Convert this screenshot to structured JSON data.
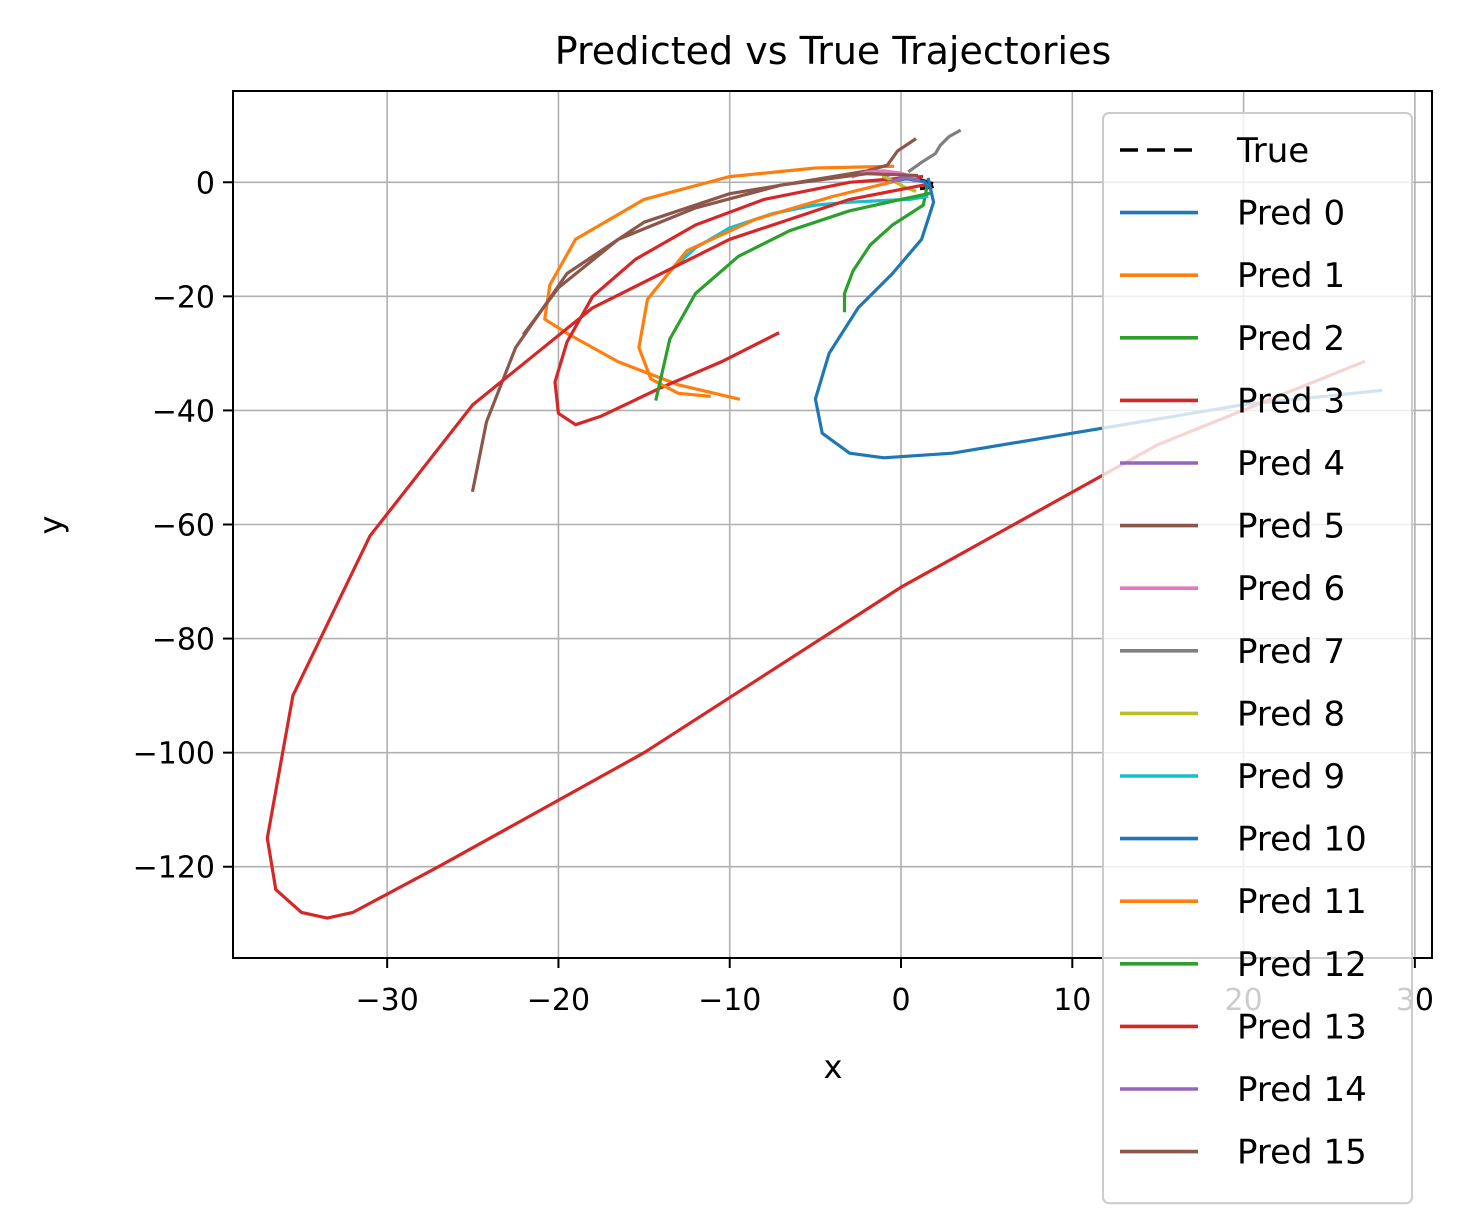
{
  "chart_data": {
    "type": "line",
    "title": "Predicted vs True Trajectories",
    "xlabel": "x",
    "ylabel": "y",
    "xlim": [
      -39,
      31
    ],
    "ylim": [
      -136,
      16
    ],
    "xticks": [
      -30,
      -20,
      -10,
      0,
      10,
      20,
      30
    ],
    "yticks": [
      0,
      -20,
      -40,
      -60,
      -80,
      -100,
      -120
    ],
    "xtick_labels": [
      "−30",
      "−20",
      "−10",
      "0",
      "10",
      "20",
      "30"
    ],
    "ytick_labels": [
      "0",
      "−20",
      "−40",
      "−60",
      "−80",
      "−100",
      "−120"
    ],
    "grid": true,
    "legend_position": "upper-right",
    "series": [
      {
        "name": "True",
        "color": "#000000",
        "dashed": true,
        "x": [
          1.0,
          1.4,
          1.8,
          2.0,
          1.7,
          1.2
        ],
        "y": [
          0.5,
          0.2,
          -0.2,
          -0.6,
          -0.9,
          -1.1
        ]
      },
      {
        "name": "Pred 0",
        "color": "#1f77b4",
        "x": [
          1.6,
          1.9,
          1.2,
          -0.5,
          -2.5,
          -4.2,
          -5.0,
          -4.6,
          -3.0,
          -1.0,
          3.0,
          10.0,
          20.0,
          28.0
        ],
        "y": [
          0.5,
          -3.5,
          -10.0,
          -16.0,
          -22.0,
          -30.0,
          -38.0,
          -44.0,
          -47.5,
          -48.3,
          -47.5,
          -44.0,
          -39.0,
          -36.5
        ]
      },
      {
        "name": "Pred 1",
        "color": "#ff7f0e",
        "x": [
          -0.5,
          -5.0,
          -10.0,
          -15.0,
          -19.0,
          -20.5,
          -20.8,
          -19.5,
          -16.5,
          -13.0,
          -9.5
        ],
        "y": [
          2.8,
          2.5,
          1.0,
          -3.0,
          -10.0,
          -18.0,
          -24.0,
          -26.5,
          -31.5,
          -35.5,
          -38.0
        ]
      },
      {
        "name": "Pred 2",
        "color": "#2ca02c",
        "x": [
          1.5,
          1.3,
          -0.5,
          -1.8,
          -2.8,
          -3.3,
          -3.3
        ],
        "y": [
          -1.0,
          -4.0,
          -7.5,
          -11.0,
          -15.5,
          -19.5,
          -22.5
        ]
      },
      {
        "name": "Pred 3",
        "color": "#d62728",
        "x": [
          1.2,
          -3.0,
          -8.0,
          -12.0,
          -15.5,
          -18.0,
          -19.5,
          -20.2,
          -20.0,
          -19.0,
          -17.5,
          -14.0,
          -10.5,
          -7.2
        ],
        "y": [
          1.0,
          0.0,
          -3.0,
          -7.5,
          -13.5,
          -20.0,
          -28.0,
          -35.0,
          -40.5,
          -42.5,
          -41.0,
          -36.0,
          -31.5,
          -26.5
        ]
      },
      {
        "name": "Pred 4",
        "color": "#9467bd",
        "x": [
          -1.0,
          -0.5,
          0.0,
          0.3
        ],
        "y": [
          1.0,
          1.5,
          1.2,
          0.6
        ]
      },
      {
        "name": "Pred 5",
        "color": "#8c564b",
        "x": [
          0.8,
          -0.2,
          -0.8,
          -2.0,
          -5.0,
          -10.0,
          -15.0,
          -19.5,
          -22.5,
          -24.2,
          -25.0
        ],
        "y": [
          7.5,
          5.5,
          3.0,
          2.0,
          0.5,
          -2.0,
          -7.0,
          -16.0,
          -29.0,
          -42.0,
          -54.0
        ]
      },
      {
        "name": "Pred 6",
        "color": "#e377c2",
        "x": [
          -2.8,
          -2.0,
          -1.0,
          0.0,
          0.8
        ],
        "y": [
          1.0,
          1.8,
          2.0,
          1.6,
          0.8
        ]
      },
      {
        "name": "Pred 7",
        "color": "#7f7f7f",
        "x": [
          0.5,
          1.2,
          2.0,
          2.3,
          2.8,
          3.4
        ],
        "y": [
          2.0,
          3.5,
          5.0,
          6.5,
          8.0,
          9.0
        ]
      },
      {
        "name": "Pred 8",
        "color": "#bcbd22",
        "x": [
          -1.0,
          -0.3,
          0.3,
          0.8
        ],
        "y": [
          1.0,
          0.0,
          -1.0,
          -1.5
        ]
      },
      {
        "name": "Pred 9",
        "color": "#17becf",
        "x": [
          1.5,
          0.5,
          -1.0,
          -3.0,
          -5.0,
          -7.5,
          -10.0,
          -12.0,
          -13.3
        ],
        "y": [
          -2.5,
          -3.0,
          -3.2,
          -3.5,
          -4.0,
          -5.5,
          -8.0,
          -11.5,
          -15.0
        ]
      },
      {
        "name": "Pred 10",
        "color": "#1f77b4",
        "x": [
          -0.8,
          0.3,
          1.4,
          1.5
        ],
        "y": [
          0.0,
          0.6,
          0.1,
          -0.6
        ]
      },
      {
        "name": "Pred 11",
        "color": "#ff7f0e",
        "x": [
          -0.3,
          -4.0,
          -8.5,
          -12.5,
          -14.8,
          -15.3,
          -14.6,
          -13.0,
          -11.2
        ],
        "y": [
          0.2,
          -2.5,
          -6.5,
          -12.0,
          -20.5,
          -29.0,
          -34.5,
          -37.0,
          -37.5
        ]
      },
      {
        "name": "Pred 12",
        "color": "#2ca02c",
        "x": [
          1.6,
          0.0,
          -3.0,
          -6.5,
          -9.5,
          -12.0,
          -13.5,
          -14.3
        ],
        "y": [
          -2.0,
          -3.0,
          -5.0,
          -8.5,
          -13.0,
          -19.5,
          -27.5,
          -38.0
        ]
      },
      {
        "name": "Pred 13",
        "color": "#d62728",
        "x": [
          1.3,
          -3.0,
          -10.0,
          -18.0,
          -25.0,
          -31.0,
          -35.5,
          -37.0,
          -36.5,
          -35.0,
          -33.5,
          -32.0,
          -27.0,
          -15.0,
          0.0,
          15.0,
          27.0
        ],
        "y": [
          -0.5,
          -3.0,
          -10.0,
          -22.0,
          -39.0,
          -62.0,
          -90.0,
          -115.0,
          -124.0,
          -128.0,
          -129.0,
          -128.0,
          -120.0,
          -100.0,
          -71.0,
          -46.0,
          -31.5
        ]
      },
      {
        "name": "Pred 14",
        "color": "#9467bd",
        "x": [
          -0.5,
          0.3,
          1.0
        ],
        "y": [
          0.2,
          0.8,
          0.4
        ]
      },
      {
        "name": "Pred 15",
        "color": "#8c564b",
        "x": [
          0.9,
          -2.0,
          -7.0,
          -12.0,
          -16.5,
          -20.0,
          -22.0
        ],
        "y": [
          1.2,
          1.5,
          -0.5,
          -4.5,
          -10.0,
          -18.5,
          -26.5
        ]
      }
    ]
  }
}
